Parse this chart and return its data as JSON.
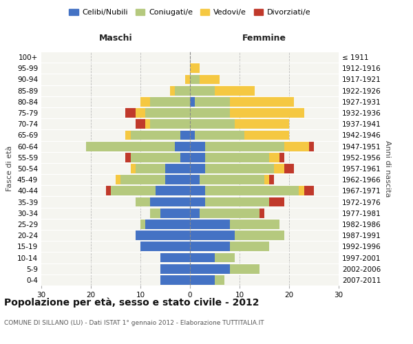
{
  "age_groups": [
    "0-4",
    "5-9",
    "10-14",
    "15-19",
    "20-24",
    "25-29",
    "30-34",
    "35-39",
    "40-44",
    "45-49",
    "50-54",
    "55-59",
    "60-64",
    "65-69",
    "70-74",
    "75-79",
    "80-84",
    "85-89",
    "90-94",
    "95-99",
    "100+"
  ],
  "birth_years": [
    "2007-2011",
    "2002-2006",
    "1997-2001",
    "1992-1996",
    "1987-1991",
    "1982-1986",
    "1977-1981",
    "1972-1976",
    "1967-1971",
    "1962-1966",
    "1957-1961",
    "1952-1956",
    "1947-1951",
    "1942-1946",
    "1937-1941",
    "1932-1936",
    "1927-1931",
    "1922-1926",
    "1917-1921",
    "1912-1916",
    "≤ 1911"
  ],
  "maschi": {
    "celibi": [
      6,
      6,
      6,
      10,
      11,
      9,
      6,
      8,
      7,
      5,
      5,
      2,
      3,
      2,
      0,
      0,
      0,
      0,
      0,
      0,
      0
    ],
    "coniugati": [
      0,
      0,
      0,
      0,
      0,
      1,
      2,
      3,
      9,
      9,
      6,
      10,
      18,
      10,
      8,
      9,
      8,
      3,
      0,
      0,
      0
    ],
    "vedovi": [
      0,
      0,
      0,
      0,
      0,
      0,
      0,
      0,
      0,
      1,
      1,
      0,
      0,
      1,
      1,
      2,
      2,
      1,
      1,
      0,
      0
    ],
    "divorziati": [
      0,
      0,
      0,
      0,
      0,
      0,
      0,
      0,
      1,
      0,
      0,
      1,
      0,
      0,
      2,
      2,
      0,
      0,
      0,
      0,
      0
    ]
  },
  "femmine": {
    "nubili": [
      5,
      8,
      5,
      8,
      9,
      8,
      2,
      3,
      3,
      2,
      3,
      3,
      3,
      1,
      0,
      0,
      1,
      0,
      0,
      0,
      0
    ],
    "coniugate": [
      2,
      6,
      4,
      8,
      10,
      10,
      12,
      13,
      19,
      13,
      14,
      13,
      16,
      10,
      9,
      8,
      7,
      5,
      2,
      0,
      0
    ],
    "vedove": [
      0,
      0,
      0,
      0,
      0,
      0,
      0,
      0,
      1,
      1,
      2,
      2,
      5,
      9,
      11,
      15,
      13,
      8,
      4,
      2,
      0
    ],
    "divorziate": [
      0,
      0,
      0,
      0,
      0,
      0,
      1,
      3,
      2,
      1,
      2,
      1,
      1,
      0,
      0,
      0,
      0,
      0,
      0,
      0,
      0
    ]
  },
  "colors": {
    "celibi": "#4472c4",
    "coniugati": "#b5c97e",
    "vedovi": "#f5c842",
    "divorziati": "#c0392b"
  },
  "xlim": 30,
  "title": "Popolazione per età, sesso e stato civile - 2012",
  "subtitle": "COMUNE DI SILLANO (LU) - Dati ISTAT 1° gennaio 2012 - Elaborazione TUTTITALIA.IT",
  "ylabel_left": "Fasce di età",
  "ylabel_right": "Anni di nascita",
  "xlabel_maschi": "Maschi",
  "xlabel_femmine": "Femmine",
  "legend_labels": [
    "Celibi/Nubili",
    "Coniugati/e",
    "Vedovi/e",
    "Divorziati/e"
  ],
  "background_color": "#ffffff",
  "plot_bg_color": "#f5f5f0",
  "grid_color": "#cccccc"
}
